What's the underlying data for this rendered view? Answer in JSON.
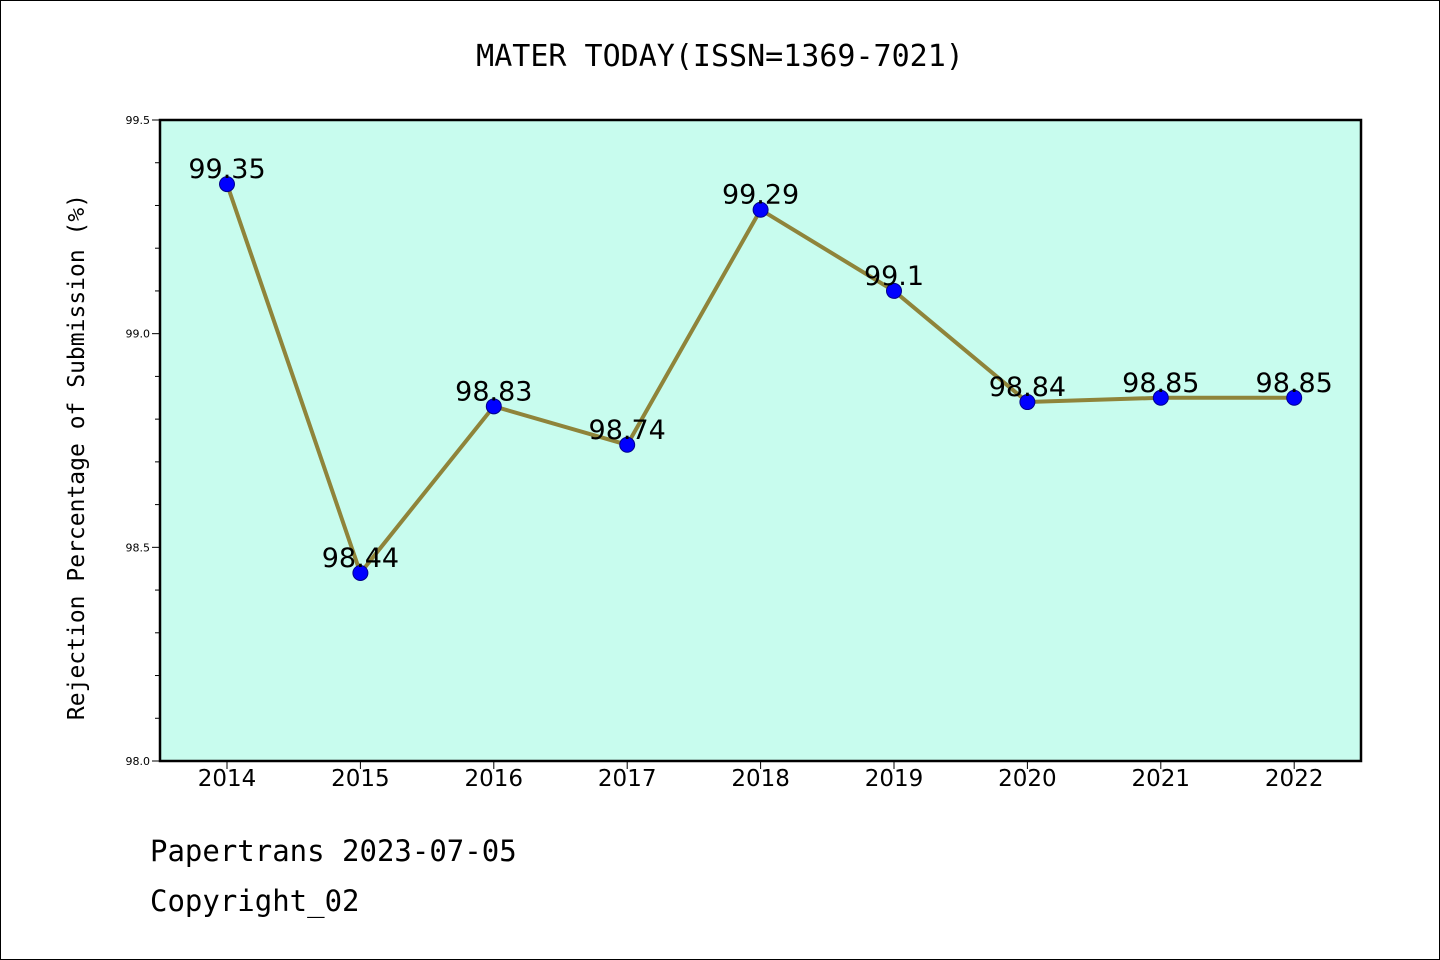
{
  "chart_data": {
    "type": "line",
    "title": "MATER TODAY(ISSN=1369-7021)",
    "xlabel": "",
    "ylabel": "Rejection Percentage of Submission (%)",
    "categories": [
      "2014",
      "2015",
      "2016",
      "2017",
      "2018",
      "2019",
      "2020",
      "2021",
      "2022"
    ],
    "values": [
      99.35,
      98.44,
      98.83,
      98.74,
      99.29,
      99.1,
      98.84,
      98.85,
      98.85
    ],
    "data_labels": [
      "99.35",
      "98.44",
      "98.83",
      "98.74",
      "99.29",
      "99.1",
      "98.84",
      "98.85",
      "98.85"
    ],
    "ylim": [
      98.0,
      99.5
    ],
    "yticks": [
      "98.0",
      "98.5",
      "99.0",
      "99.5"
    ],
    "grid": false,
    "colors": {
      "plot_background": "#c8fcee",
      "line": "#8f843a",
      "marker": "#0000ff",
      "marker_edge": "#00008b"
    }
  },
  "footer": {
    "line1": "Papertrans 2023-07-05",
    "line2": "Copyright_02"
  }
}
